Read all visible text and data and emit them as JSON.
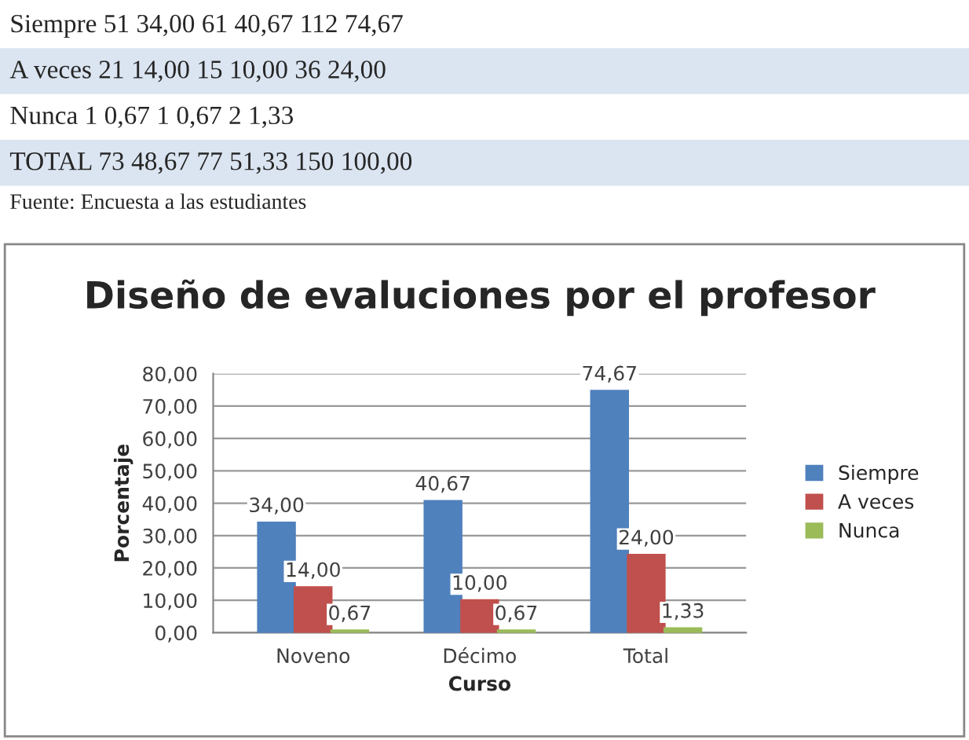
{
  "chart_data": {
    "type": "bar",
    "title": "Diseño de evaluciones por el profesor",
    "xlabel": "Curso",
    "ylabel": "Porcentaje",
    "categories": [
      "Noveno",
      "Décimo",
      "Total"
    ],
    "series": [
      {
        "name": "Siempre",
        "color": "#4f81bd",
        "values": [
          34.0,
          40.67,
          74.67
        ],
        "value_labels": [
          "34,00",
          "40,67",
          "74,67"
        ]
      },
      {
        "name": "A veces",
        "color": "#c0504d",
        "values": [
          14.0,
          10.0,
          24.0
        ],
        "value_labels": [
          "14,00",
          "10,00",
          "24,00"
        ]
      },
      {
        "name": "Nunca",
        "color": "#9bbb59",
        "values": [
          0.67,
          0.67,
          1.33
        ],
        "value_labels": [
          "0,67",
          "0,67",
          "1,33"
        ]
      }
    ],
    "ylim": [
      0,
      80
    ],
    "yticks": [
      {
        "value": 0,
        "label": "0,00"
      },
      {
        "value": 10,
        "label": "10,00"
      },
      {
        "value": 20,
        "label": "20,00"
      },
      {
        "value": 30,
        "label": "30,00"
      },
      {
        "value": 40,
        "label": "40,00"
      },
      {
        "value": 50,
        "label": "50,00"
      },
      {
        "value": 60,
        "label": "60,00"
      },
      {
        "value": 70,
        "label": "70,00"
      },
      {
        "value": 80,
        "label": "80,00"
      }
    ],
    "grid": "y",
    "legend": "right",
    "annotations": [
      "Siempre 51 34,00 61 40,67 112 74,67",
      "A veces 21 14,00 15 10,00 36 24,00",
      "Nunca 1 0,67 1 0,67 2 1,33",
      "TOTAL 73 48,67 77 51,33 150 100,00",
      "Fuente: Encuesta a las estudiantes"
    ]
  }
}
